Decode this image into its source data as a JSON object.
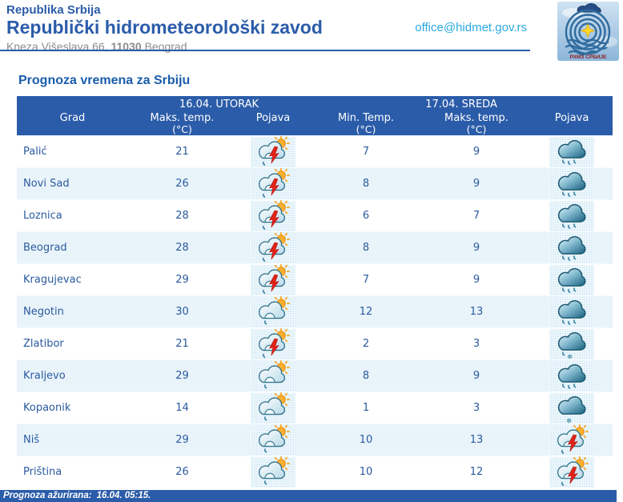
{
  "header": {
    "country": "Republika Srbija",
    "org": "Republički hidrometeorološki zavod",
    "address_street": "Kneza Višeslava 66,",
    "address_zip": "11030",
    "address_city": "Beograd",
    "email": "office@hidmet.gov.rs",
    "logo_caption": "РХМЗ СРБИЈЕ"
  },
  "page_title": "Prognoza vremena za Srbiju",
  "table": {
    "day1_header": "16.04. UTORAK",
    "day2_header": "17.04. SREDA",
    "columns": {
      "city": "Grad",
      "max_temp": "Maks. temp.",
      "min_temp": "Min. Temp.",
      "unit": "(°C)",
      "phenomenon": "Pojava"
    },
    "rows": [
      {
        "city": "Palić",
        "day1_max": "21",
        "day1_icon": "thunder-shower",
        "day2_min": "7",
        "day2_max": "9",
        "day2_icon": "rain"
      },
      {
        "city": "Novi Sad",
        "day1_max": "26",
        "day1_icon": "thunder-shower",
        "day2_min": "8",
        "day2_max": "9",
        "day2_icon": "rain"
      },
      {
        "city": "Loznica",
        "day1_max": "28",
        "day1_icon": "thunder-shower",
        "day2_min": "6",
        "day2_max": "7",
        "day2_icon": "rain"
      },
      {
        "city": "Beograd",
        "day1_max": "28",
        "day1_icon": "thunder-shower",
        "day2_min": "8",
        "day2_max": "9",
        "day2_icon": "rain"
      },
      {
        "city": "Kragujevac",
        "day1_max": "29",
        "day1_icon": "thunder-shower",
        "day2_min": "7",
        "day2_max": "9",
        "day2_icon": "rain"
      },
      {
        "city": "Negotin",
        "day1_max": "30",
        "day1_icon": "sun-shower",
        "day2_min": "12",
        "day2_max": "13",
        "day2_icon": "rain"
      },
      {
        "city": "Zlatibor",
        "day1_max": "21",
        "day1_icon": "thunder-shower",
        "day2_min": "2",
        "day2_max": "3",
        "day2_icon": "sleet"
      },
      {
        "city": "Kraljevo",
        "day1_max": "29",
        "day1_icon": "sun-shower",
        "day2_min": "8",
        "day2_max": "9",
        "day2_icon": "rain"
      },
      {
        "city": "Kopaonik",
        "day1_max": "14",
        "day1_icon": "sun-shower",
        "day2_min": "1",
        "day2_max": "3",
        "day2_icon": "snow"
      },
      {
        "city": "Niš",
        "day1_max": "29",
        "day1_icon": "sun-shower",
        "day2_min": "10",
        "day2_max": "13",
        "day2_icon": "thunder-shower"
      },
      {
        "city": "Priština",
        "day1_max": "26",
        "day1_icon": "sun-shower",
        "day2_min": "10",
        "day2_max": "12",
        "day2_icon": "thunder-shower"
      }
    ]
  },
  "footer": {
    "updated_label": "Prognoza ažurirana:",
    "updated_value": "16.04. 05:15."
  },
  "colors": {
    "brand_blue": "#2b5ca9",
    "title_blue": "#1a5dab",
    "table_text_blue": "#2a5a9f",
    "email_cyan": "#2aa9e0",
    "stripe": "#e9f4fa",
    "icon_cell": "#d9edf8",
    "bolt_red": "#e2231a",
    "sun_orange": "#f9b02c"
  }
}
